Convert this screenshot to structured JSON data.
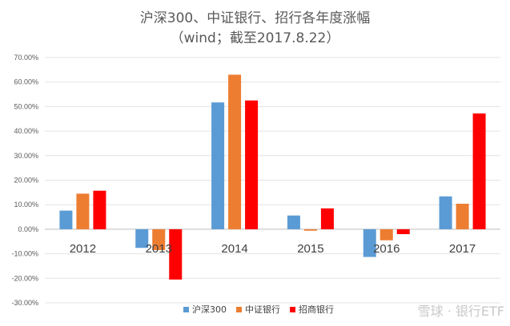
{
  "chart_data": {
    "type": "bar",
    "title": "沪深300、中证银行、招行各年度涨幅",
    "subtitle": "（wind；截至2017.8.22）",
    "categories": [
      "2012",
      "2013",
      "2014",
      "2015",
      "2016",
      "2017"
    ],
    "series": [
      {
        "name": "沪深300",
        "color": "#5b9bd5",
        "values": [
          7.6,
          -7.6,
          51.7,
          5.6,
          -11.3,
          13.4
        ]
      },
      {
        "name": "中证银行",
        "color": "#ed7d31",
        "values": [
          14.5,
          -8.5,
          63.0,
          -0.6,
          -4.5,
          10.4
        ]
      },
      {
        "name": "招商银行",
        "color": "#ff0000",
        "values": [
          15.7,
          -20.5,
          52.5,
          8.5,
          -2.0,
          47.2
        ]
      }
    ],
    "ylim": [
      -30,
      70
    ],
    "ytick_step": 10,
    "ytick_format": "percent_2dp",
    "grid": true,
    "legend": "bottom"
  },
  "watermark": "雪球 · 银行ETF"
}
